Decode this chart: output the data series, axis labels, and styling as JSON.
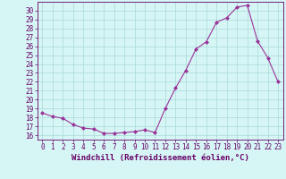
{
  "x": [
    0,
    1,
    2,
    3,
    4,
    5,
    6,
    7,
    8,
    9,
    10,
    11,
    12,
    13,
    14,
    15,
    16,
    17,
    18,
    19,
    20,
    21,
    22,
    23
  ],
  "y": [
    18.5,
    18.1,
    17.9,
    17.2,
    16.8,
    16.7,
    16.2,
    16.2,
    16.3,
    16.4,
    16.6,
    16.3,
    19.0,
    21.3,
    23.3,
    25.7,
    26.5,
    28.7,
    29.2,
    30.4,
    30.6,
    26.6,
    24.7,
    22.0
  ],
  "line_color": "#993399",
  "marker": "D",
  "marker_size": 2,
  "bg_color": "#d6f5f5",
  "grid_color": "#b0dede",
  "xlabel": "Windchill (Refroidissement éolien,°C)",
  "ylim": [
    15.5,
    31.0
  ],
  "yticks": [
    16,
    17,
    18,
    19,
    20,
    21,
    22,
    23,
    24,
    25,
    26,
    27,
    28,
    29,
    30
  ],
  "xlim": [
    -0.5,
    23.5
  ],
  "xticks": [
    0,
    1,
    2,
    3,
    4,
    5,
    6,
    7,
    8,
    9,
    10,
    11,
    12,
    13,
    14,
    15,
    16,
    17,
    18,
    19,
    20,
    21,
    22,
    23
  ],
  "tick_color": "#660066",
  "spine_color": "#660066",
  "font_color": "#660066",
  "font_family": "monospace",
  "font_size": 5.5,
  "xlabel_fontsize": 6.5,
  "linewidth": 0.8
}
